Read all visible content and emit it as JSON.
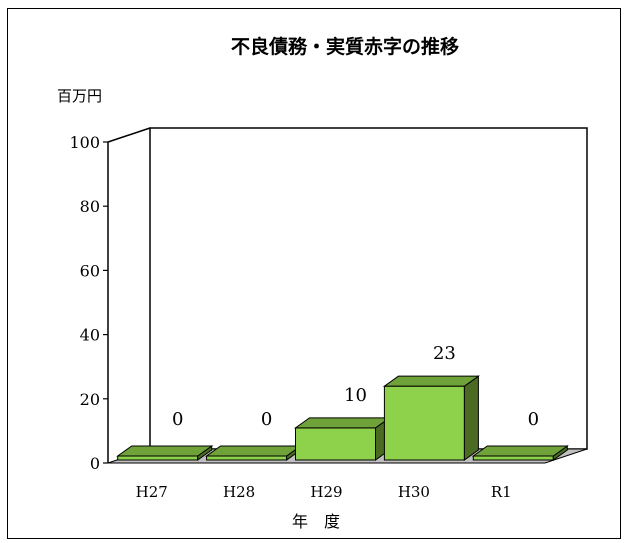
{
  "chart_data": {
    "type": "bar",
    "title": "不良債務・実質赤字の推移",
    "unit_label": "百万円",
    "xlabel": "年　度",
    "ylabel": "",
    "categories": [
      "H27",
      "H28",
      "H29",
      "H30",
      "R1"
    ],
    "values": [
      0,
      0,
      10,
      23,
      0
    ],
    "data_labels": [
      "0",
      "0",
      "10",
      "23",
      "0"
    ],
    "ylim": [
      0,
      100
    ],
    "yticks": [
      "0",
      "20",
      "40",
      "60",
      "80",
      "100"
    ],
    "grid": false,
    "legend": "none",
    "three_d": true
  },
  "colors": {
    "bar_front": "#8ed14a",
    "bar_side": "#4b6b22",
    "bar_top": "#6fa33a",
    "floor": "#c0c0c0",
    "border": "#000000"
  }
}
